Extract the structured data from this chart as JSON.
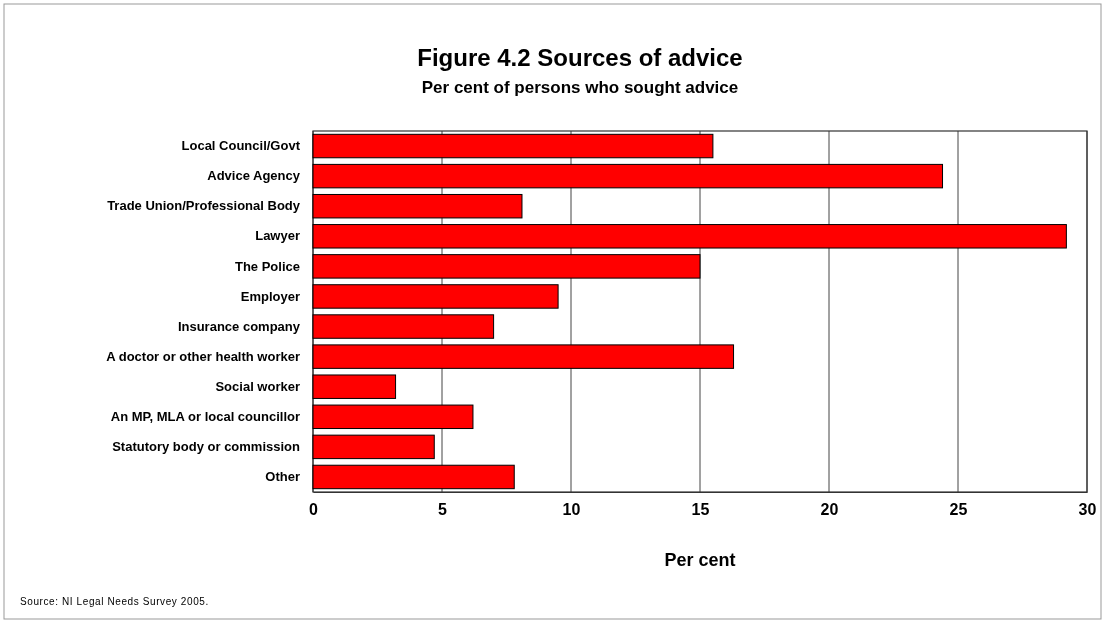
{
  "chart_data": {
    "type": "bar",
    "orientation": "horizontal",
    "title": "Figure 4.2 Sources of advice",
    "subtitle": "Per cent of persons who sought advice",
    "xlabel": "Per cent",
    "categories": [
      "Local Council/Govt",
      "Advice Agency",
      "Trade Union/Professional Body",
      "Lawyer",
      "The Police",
      "Employer",
      "Insurance company",
      "A doctor or other health worker",
      "Social worker",
      "An MP, MLA or local councillor",
      "Statutory body or commission",
      "Other"
    ],
    "values": [
      15.5,
      24.4,
      8.1,
      29.2,
      15.0,
      9.5,
      7.0,
      16.3,
      3.2,
      6.2,
      4.7,
      7.8
    ],
    "color": "#ff0000",
    "xlim": [
      0,
      30
    ],
    "xticks": [
      0,
      5,
      10,
      15,
      20,
      25,
      30
    ],
    "grid": "x",
    "annotations": [
      "Source: NI Legal Needs Survey 2005."
    ]
  }
}
